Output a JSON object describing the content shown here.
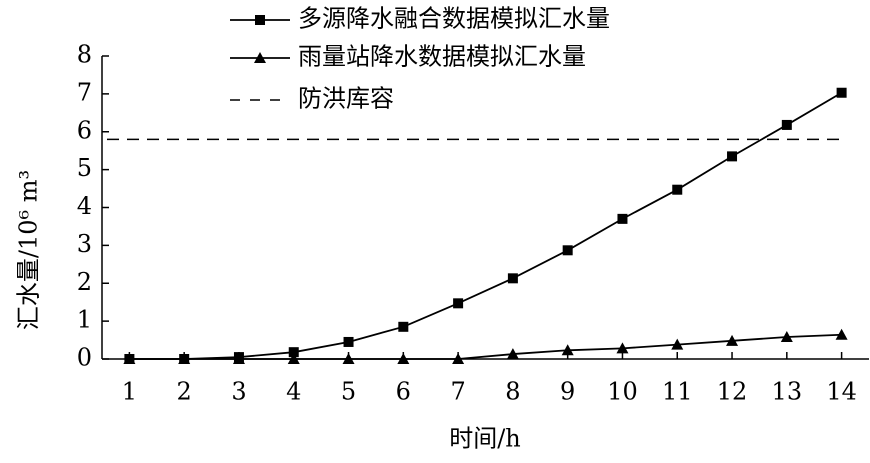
{
  "chart_data": {
    "type": "line",
    "x_label": "时间/h",
    "y_label": "汇水量/10⁶ m³",
    "x": [
      1,
      2,
      3,
      4,
      5,
      6,
      7,
      8,
      9,
      10,
      11,
      12,
      13,
      14
    ],
    "series": [
      {
        "name": "多源降水融合数据模拟汇水量",
        "color": "#000000",
        "marker": "square",
        "values": [
          0,
          0,
          0.05,
          0.18,
          0.45,
          0.85,
          1.47,
          2.13,
          2.87,
          3.7,
          4.47,
          5.35,
          6.18,
          7.03
        ]
      },
      {
        "name": "雨量站降水数据模拟汇水量",
        "color": "#000000",
        "marker": "triangle",
        "values": [
          0,
          0,
          0,
          0,
          0,
          0,
          0,
          0.13,
          0.23,
          0.28,
          0.38,
          0.48,
          0.58,
          0.64
        ]
      }
    ],
    "reference_lines": [
      {
        "name": "防洪库容",
        "value": 5.8,
        "style": "dashed",
        "color": "#000000"
      }
    ],
    "xlim": [
      0.5,
      14.5
    ],
    "ylim": [
      0,
      8
    ],
    "xticks": [
      1,
      2,
      3,
      4,
      5,
      6,
      7,
      8,
      9,
      10,
      11,
      12,
      13,
      14
    ],
    "yticks": [
      0,
      1,
      2,
      3,
      4,
      5,
      6,
      7,
      8
    ],
    "grid": false,
    "legend": "top"
  }
}
